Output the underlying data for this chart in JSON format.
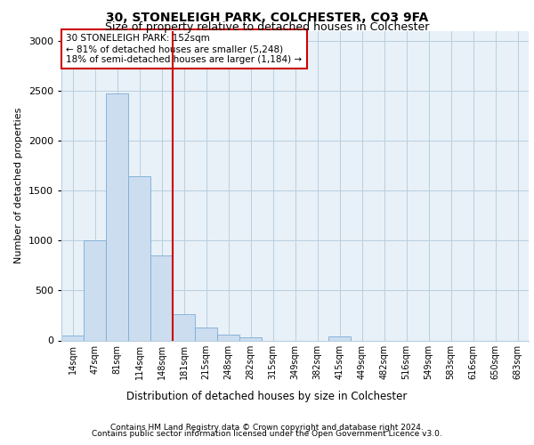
{
  "title1": "30, STONELEIGH PARK, COLCHESTER, CO3 9FA",
  "title2": "Size of property relative to detached houses in Colchester",
  "xlabel": "Distribution of detached houses by size in Colchester",
  "ylabel": "Number of detached properties",
  "categories": [
    "14sqm",
    "47sqm",
    "81sqm",
    "114sqm",
    "148sqm",
    "181sqm",
    "215sqm",
    "248sqm",
    "282sqm",
    "315sqm",
    "349sqm",
    "382sqm",
    "415sqm",
    "449sqm",
    "482sqm",
    "516sqm",
    "549sqm",
    "583sqm",
    "616sqm",
    "650sqm",
    "683sqm"
  ],
  "values": [
    50,
    1000,
    2480,
    1650,
    850,
    265,
    130,
    55,
    30,
    0,
    0,
    0,
    40,
    0,
    0,
    0,
    0,
    0,
    0,
    0,
    0
  ],
  "bar_color": "#ccddf0",
  "bar_edge_color": "#7aadd4",
  "grid_color": "#b8cfe0",
  "bg_color": "#e8f0f8",
  "vline_color": "#cc0000",
  "vline_pos": 4.5,
  "annotation_text": "30 STONELEIGH PARK: 152sqm\n← 81% of detached houses are smaller (5,248)\n18% of semi-detached houses are larger (1,184) →",
  "annotation_box_color": "#cc0000",
  "footer1": "Contains HM Land Registry data © Crown copyright and database right 2024.",
  "footer2": "Contains public sector information licensed under the Open Government Licence v3.0.",
  "ylim": [
    0,
    3100
  ],
  "yticks": [
    0,
    500,
    1000,
    1500,
    2000,
    2500,
    3000
  ]
}
